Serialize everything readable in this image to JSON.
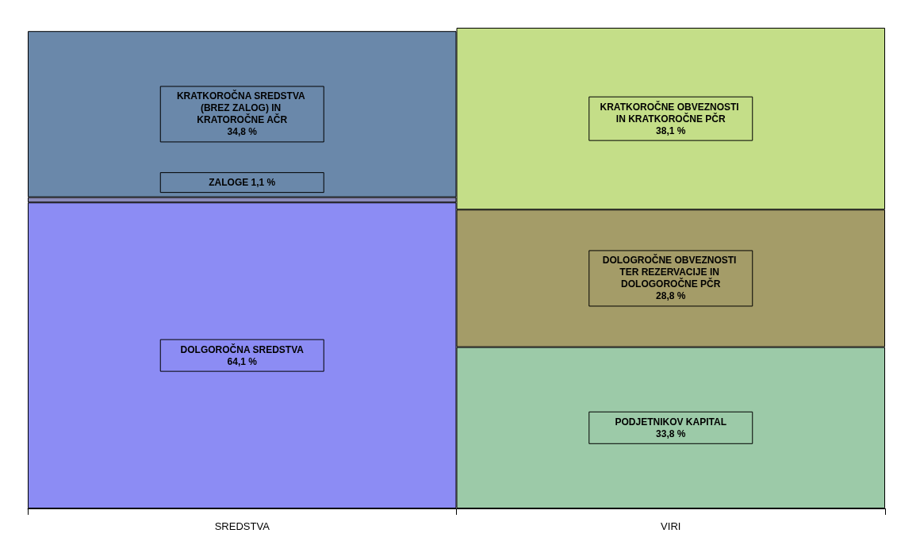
{
  "chart_data": {
    "type": "bar",
    "stacked": true,
    "categories": [
      "SREDSTVA",
      "VIRI"
    ],
    "legend": false,
    "series": [
      {
        "name": "DOLGOROČNA SREDSTVA",
        "color": "#8c8cf4",
        "values": [
          64.1,
          null
        ],
        "value_labels": [
          "64,1 %",
          null
        ]
      },
      {
        "name": "ZALOGE",
        "color": "#8a8ab8",
        "values": [
          1.1,
          null
        ],
        "value_labels": [
          "1,1 %",
          null
        ]
      },
      {
        "name": "KRATKOROČNA SREDSTVA (BREZ ZALOG) IN KRATOROČNE AČR",
        "color": "#6a88aa",
        "values": [
          34.8,
          null
        ],
        "value_labels": [
          "34,8 %",
          null
        ]
      },
      {
        "name": "PODJETNIKOV KAPITAL",
        "color": "#9ccaa8",
        "values": [
          null,
          33.8
        ],
        "value_labels": [
          null,
          "33,8 %"
        ]
      },
      {
        "name": "DOLOGROČNE OBVEZNOSTI TER REZERVACIJE IN DOLOGOROČNE PČR",
        "color": "#a49c68",
        "values": [
          null,
          28.8
        ],
        "value_labels": [
          null,
          "28,8 %"
        ]
      },
      {
        "name": "KRATKOROČNE OBVEZNOSTI IN KRATKOROČNE PČR",
        "color": "#c4de88",
        "values": [
          null,
          38.1
        ],
        "value_labels": [
          null,
          "38,1 %"
        ]
      }
    ]
  }
}
